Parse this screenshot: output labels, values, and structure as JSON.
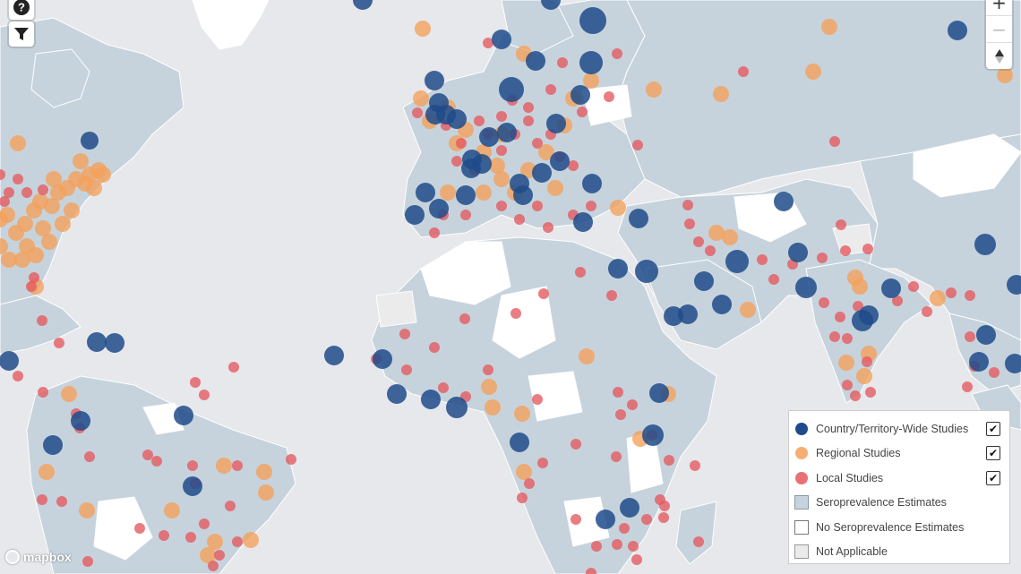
{
  "map": {
    "colors": {
      "water": "#e6e8ec",
      "seroprevalence_land": "#c7d3dc",
      "no_estimate_land": "#ffffff",
      "not_applicable_land": "#ebebeb",
      "national": "#1f4b8a",
      "regional": "#f5a05a",
      "local": "#e4585f"
    }
  },
  "controls": {
    "help_icon": "help-icon",
    "filter_icon": "filter-icon",
    "zoom_in": "+",
    "zoom_out": "−",
    "compass": "▲"
  },
  "legend": {
    "items": [
      {
        "label": "Country/Territory-Wide Studies",
        "kind": "dot",
        "color": "#1f4b8a",
        "checked": true
      },
      {
        "label": "Regional Studies",
        "kind": "dot",
        "color": "#f5a05a",
        "checked": true
      },
      {
        "label": "Local Studies",
        "kind": "dot",
        "color": "#e4585f",
        "checked": true
      },
      {
        "label": "Seroprevalence Estimates",
        "kind": "square",
        "color": "#c7d3dc"
      },
      {
        "label": "No Seroprevalence Estimates",
        "kind": "square",
        "color": "#ffffff"
      },
      {
        "label": "Not Applicable",
        "kind": "square",
        "color": "#ebebeb"
      }
    ]
  },
  "attribution": {
    "text": "mapbox"
  }
}
